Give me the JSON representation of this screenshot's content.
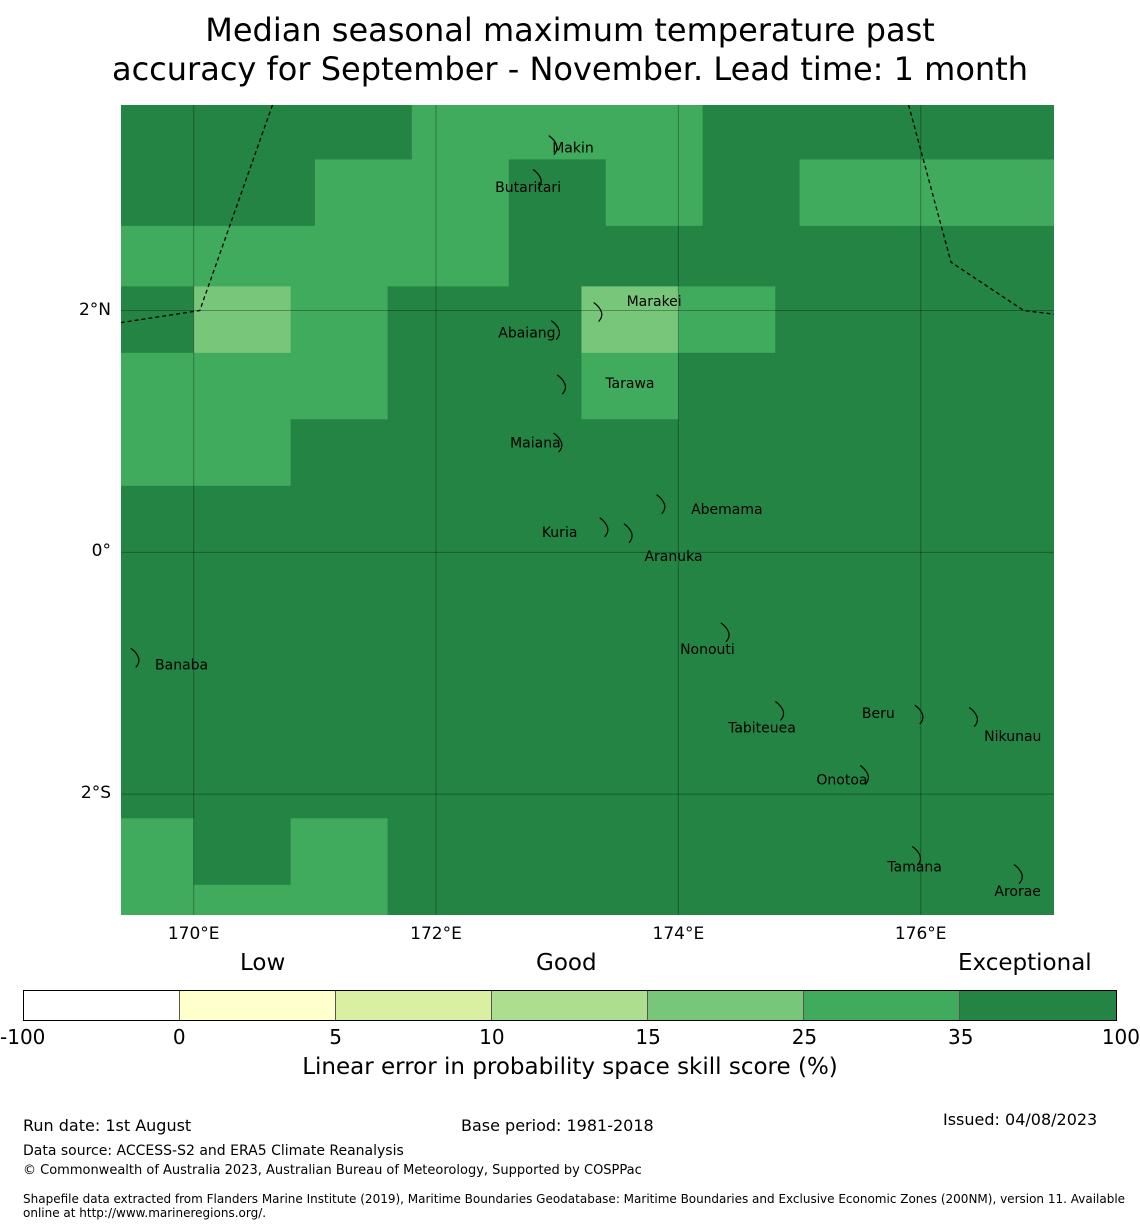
{
  "title_line1": "Median seasonal maximum temperature past",
  "title_line2": "accuracy for September - November. Lead time: 1 month",
  "map": {
    "lon_range": [
      169.4,
      177.1
    ],
    "lat_range": [
      -3.0,
      3.7
    ],
    "grid_cells": [
      {
        "lon": [
          169.4,
          170.2
        ],
        "lat": [
          3.25,
          3.7
        ],
        "cat": 6
      },
      {
        "lon": [
          170.2,
          171.0
        ],
        "lat": [
          3.25,
          3.7
        ],
        "cat": 6
      },
      {
        "lon": [
          171.0,
          171.8
        ],
        "lat": [
          3.25,
          3.7
        ],
        "cat": 6
      },
      {
        "lon": [
          171.8,
          172.6
        ],
        "lat": [
          3.25,
          3.7
        ],
        "cat": 5
      },
      {
        "lon": [
          172.6,
          173.4
        ],
        "lat": [
          3.25,
          3.7
        ],
        "cat": 5
      },
      {
        "lon": [
          173.4,
          174.2
        ],
        "lat": [
          3.25,
          3.7
        ],
        "cat": 5
      },
      {
        "lon": [
          174.2,
          175.0
        ],
        "lat": [
          3.25,
          3.7
        ],
        "cat": 6
      },
      {
        "lon": [
          175.0,
          175.8
        ],
        "lat": [
          3.25,
          3.7
        ],
        "cat": 6
      },
      {
        "lon": [
          175.8,
          176.6
        ],
        "lat": [
          3.25,
          3.7
        ],
        "cat": 6
      },
      {
        "lon": [
          176.6,
          177.1
        ],
        "lat": [
          3.25,
          3.7
        ],
        "cat": 6
      },
      {
        "lon": [
          169.4,
          170.2
        ],
        "lat": [
          2.7,
          3.25
        ],
        "cat": 6
      },
      {
        "lon": [
          170.2,
          171.0
        ],
        "lat": [
          2.7,
          3.25
        ],
        "cat": 6
      },
      {
        "lon": [
          171.0,
          171.8
        ],
        "lat": [
          2.7,
          3.25
        ],
        "cat": 5
      },
      {
        "lon": [
          171.8,
          172.6
        ],
        "lat": [
          2.7,
          3.25
        ],
        "cat": 5
      },
      {
        "lon": [
          172.6,
          173.4
        ],
        "lat": [
          2.7,
          3.25
        ],
        "cat": 6
      },
      {
        "lon": [
          173.4,
          174.2
        ],
        "lat": [
          2.7,
          3.25
        ],
        "cat": 5
      },
      {
        "lon": [
          174.2,
          175.0
        ],
        "lat": [
          2.7,
          3.25
        ],
        "cat": 6
      },
      {
        "lon": [
          175.0,
          175.8
        ],
        "lat": [
          2.7,
          3.25
        ],
        "cat": 5
      },
      {
        "lon": [
          175.8,
          176.6
        ],
        "lat": [
          2.7,
          3.25
        ],
        "cat": 5
      },
      {
        "lon": [
          176.6,
          177.1
        ],
        "lat": [
          2.7,
          3.25
        ],
        "cat": 5
      },
      {
        "lon": [
          169.4,
          170.2
        ],
        "lat": [
          2.2,
          2.7
        ],
        "cat": 5
      },
      {
        "lon": [
          170.2,
          171.0
        ],
        "lat": [
          2.2,
          2.7
        ],
        "cat": 5
      },
      {
        "lon": [
          171.0,
          171.8
        ],
        "lat": [
          2.2,
          2.7
        ],
        "cat": 5
      },
      {
        "lon": [
          171.8,
          172.6
        ],
        "lat": [
          2.2,
          2.7
        ],
        "cat": 5
      },
      {
        "lon": [
          172.6,
          173.4
        ],
        "lat": [
          2.2,
          2.7
        ],
        "cat": 6
      },
      {
        "lon": [
          173.4,
          174.2
        ],
        "lat": [
          2.2,
          2.7
        ],
        "cat": 6
      },
      {
        "lon": [
          174.2,
          175.0
        ],
        "lat": [
          2.2,
          2.7
        ],
        "cat": 6
      },
      {
        "lon": [
          175.0,
          175.8
        ],
        "lat": [
          2.2,
          2.7
        ],
        "cat": 6
      },
      {
        "lon": [
          175.8,
          176.6
        ],
        "lat": [
          2.2,
          2.7
        ],
        "cat": 6
      },
      {
        "lon": [
          176.6,
          177.1
        ],
        "lat": [
          2.2,
          2.7
        ],
        "cat": 6
      },
      {
        "lon": [
          169.4,
          170.0
        ],
        "lat": [
          1.65,
          2.2
        ],
        "cat": 6
      },
      {
        "lon": [
          170.0,
          170.8
        ],
        "lat": [
          1.65,
          2.2
        ],
        "cat": 4
      },
      {
        "lon": [
          170.8,
          171.6
        ],
        "lat": [
          1.65,
          2.2
        ],
        "cat": 5
      },
      {
        "lon": [
          171.6,
          172.4
        ],
        "lat": [
          1.65,
          2.2
        ],
        "cat": 6
      },
      {
        "lon": [
          172.4,
          173.2
        ],
        "lat": [
          1.65,
          2.2
        ],
        "cat": 6
      },
      {
        "lon": [
          173.2,
          174.0
        ],
        "lat": [
          1.65,
          2.2
        ],
        "cat": 4
      },
      {
        "lon": [
          174.0,
          174.8
        ],
        "lat": [
          1.65,
          2.2
        ],
        "cat": 5
      },
      {
        "lon": [
          174.8,
          175.6
        ],
        "lat": [
          1.65,
          2.2
        ],
        "cat": 6
      },
      {
        "lon": [
          175.6,
          176.4
        ],
        "lat": [
          1.65,
          2.2
        ],
        "cat": 6
      },
      {
        "lon": [
          176.4,
          177.1
        ],
        "lat": [
          1.65,
          2.2
        ],
        "cat": 6
      },
      {
        "lon": [
          169.4,
          170.0
        ],
        "lat": [
          1.1,
          1.65
        ],
        "cat": 5
      },
      {
        "lon": [
          170.0,
          170.8
        ],
        "lat": [
          1.1,
          1.65
        ],
        "cat": 5
      },
      {
        "lon": [
          170.8,
          171.6
        ],
        "lat": [
          1.1,
          1.65
        ],
        "cat": 5
      },
      {
        "lon": [
          171.6,
          172.4
        ],
        "lat": [
          1.1,
          1.65
        ],
        "cat": 6
      },
      {
        "lon": [
          172.4,
          173.2
        ],
        "lat": [
          1.1,
          1.65
        ],
        "cat": 6
      },
      {
        "lon": [
          173.2,
          174.0
        ],
        "lat": [
          1.1,
          1.65
        ],
        "cat": 5
      },
      {
        "lon": [
          174.0,
          174.8
        ],
        "lat": [
          1.1,
          1.65
        ],
        "cat": 6
      },
      {
        "lon": [
          174.8,
          175.6
        ],
        "lat": [
          1.1,
          1.65
        ],
        "cat": 6
      },
      {
        "lon": [
          175.6,
          176.4
        ],
        "lat": [
          1.1,
          1.65
        ],
        "cat": 6
      },
      {
        "lon": [
          176.4,
          177.1
        ],
        "lat": [
          1.1,
          1.65
        ],
        "cat": 6
      },
      {
        "lon": [
          169.4,
          170.0
        ],
        "lat": [
          0.55,
          1.1
        ],
        "cat": 5
      },
      {
        "lon": [
          170.0,
          170.8
        ],
        "lat": [
          0.55,
          1.1
        ],
        "cat": 5
      },
      {
        "lon": [
          170.8,
          177.1
        ],
        "lat": [
          0.55,
          1.1
        ],
        "cat": 6
      },
      {
        "lon": [
          169.4,
          177.1
        ],
        "lat": [
          -2.2,
          0.55
        ],
        "cat": 6
      },
      {
        "lon": [
          169.4,
          170.0
        ],
        "lat": [
          -2.75,
          -2.2
        ],
        "cat": 5
      },
      {
        "lon": [
          170.0,
          170.8
        ],
        "lat": [
          -2.75,
          -2.2
        ],
        "cat": 6
      },
      {
        "lon": [
          170.8,
          171.6
        ],
        "lat": [
          -2.75,
          -2.2
        ],
        "cat": 5
      },
      {
        "lon": [
          171.6,
          177.1
        ],
        "lat": [
          -2.75,
          -2.2
        ],
        "cat": 6
      },
      {
        "lon": [
          169.4,
          170.0
        ],
        "lat": [
          -3.0,
          -2.75
        ],
        "cat": 5
      },
      {
        "lon": [
          170.0,
          170.8
        ],
        "lat": [
          -3.0,
          -2.75
        ],
        "cat": 5
      },
      {
        "lon": [
          170.8,
          171.6
        ],
        "lat": [
          -3.0,
          -2.75
        ],
        "cat": 5
      },
      {
        "lon": [
          171.6,
          177.1
        ],
        "lat": [
          -3.0,
          -2.75
        ],
        "cat": 6
      }
    ],
    "gridlines_lon": [
      170,
      172,
      174,
      176
    ],
    "gridlines_lat": [
      2,
      0,
      -2
    ],
    "eez_west": [
      [
        170.65,
        3.7
      ],
      [
        170.05,
        2.0
      ],
      [
        169.4,
        1.9
      ]
    ],
    "eez_east": [
      [
        175.9,
        3.7
      ],
      [
        176.25,
        2.4
      ],
      [
        176.85,
        2.0
      ],
      [
        177.1,
        1.97
      ]
    ],
    "places": [
      {
        "name": "Makin",
        "lon": 172.98,
        "lat": 3.38,
        "label_lon": 173.13,
        "label_lat": 3.35
      },
      {
        "name": "Butaritari",
        "lon": 172.85,
        "lat": 3.1,
        "label_lon": 172.76,
        "label_lat": 3.02
      },
      {
        "name": "Marakei",
        "lon": 173.35,
        "lat": 2.0,
        "label_lon": 173.8,
        "label_lat": 2.08
      },
      {
        "name": "Abaiang",
        "lon": 173.0,
        "lat": 1.85,
        "label_lon": 172.75,
        "label_lat": 1.82
      },
      {
        "name": "Tarawa",
        "lon": 173.05,
        "lat": 1.4,
        "label_lon": 173.6,
        "label_lat": 1.4
      },
      {
        "name": "Maiana",
        "lon": 173.02,
        "lat": 0.92,
        "label_lon": 172.82,
        "label_lat": 0.91
      },
      {
        "name": "Abemama",
        "lon": 173.87,
        "lat": 0.41,
        "label_lon": 174.4,
        "label_lat": 0.36
      },
      {
        "name": "Kuria",
        "lon": 173.4,
        "lat": 0.22,
        "label_lon": 173.02,
        "label_lat": 0.17
      },
      {
        "name": "Aranuka",
        "lon": 173.6,
        "lat": 0.17,
        "label_lon": 173.96,
        "label_lat": -0.03
      },
      {
        "name": "Nonouti",
        "lon": 174.4,
        "lat": -0.65,
        "label_lon": 174.24,
        "label_lat": -0.8
      },
      {
        "name": "Banaba",
        "lon": 169.53,
        "lat": -0.86,
        "label_lon": 169.9,
        "label_lat": -0.93
      },
      {
        "name": "Tabiteuea",
        "lon": 174.85,
        "lat": -1.3,
        "label_lon": 174.69,
        "label_lat": -1.45
      },
      {
        "name": "Beru",
        "lon": 176.0,
        "lat": -1.33,
        "label_lon": 175.65,
        "label_lat": -1.33
      },
      {
        "name": "Nikunau",
        "lon": 176.45,
        "lat": -1.35,
        "label_lon": 176.76,
        "label_lat": -1.52
      },
      {
        "name": "Onotoa",
        "lon": 175.55,
        "lat": -1.83,
        "label_lon": 175.35,
        "label_lat": -1.88
      },
      {
        "name": "Tamana",
        "lon": 175.98,
        "lat": -2.5,
        "label_lon": 175.95,
        "label_lat": -2.6
      },
      {
        "name": "Arorae",
        "lon": 176.82,
        "lat": -2.65,
        "label_lon": 176.8,
        "label_lat": -2.8
      }
    ]
  },
  "axes": {
    "lat_labels": [
      {
        "text": "2°N",
        "lat": 2
      },
      {
        "text": "0°",
        "lat": 0
      },
      {
        "text": "2°S",
        "lat": -2
      }
    ],
    "lon_labels": [
      {
        "text": "170°E",
        "lon": 170
      },
      {
        "text": "172°E",
        "lon": 172
      },
      {
        "text": "174°E",
        "lon": 174
      },
      {
        "text": "176°E",
        "lon": 176
      }
    ]
  },
  "legend": {
    "categories": [
      "Low",
      "Good",
      "Exceptional"
    ],
    "colors": [
      "#ffffff",
      "#ffffcc",
      "#d9f0a3",
      "#addd8e",
      "#78c679",
      "#41ab5d",
      "#238443"
    ],
    "ticks": [
      "-100",
      "0",
      "5",
      "10",
      "15",
      "25",
      "35",
      "100"
    ],
    "title": "Linear error in probability space skill score (%)"
  },
  "footer": {
    "run_date": "Run date: 1st August",
    "base_period": "Base period: 1981-2018",
    "issued": "Issued: 04/08/2023",
    "data_source": "Data source: ACCESS-S2 and ERA5 Climate Reanalysis",
    "copyright": "© Commonwealth of Australia 2023, Australian Bureau of Meteorology, Supported by COSPPac",
    "shapefile": "Shapefile data extracted from Flanders Marine Institute (2019), Maritime Boundaries Geodatabase: Maritime Boundaries and Exclusive Economic Zones (200NM), version 11. Available online at http://www.marineregions.org/."
  }
}
